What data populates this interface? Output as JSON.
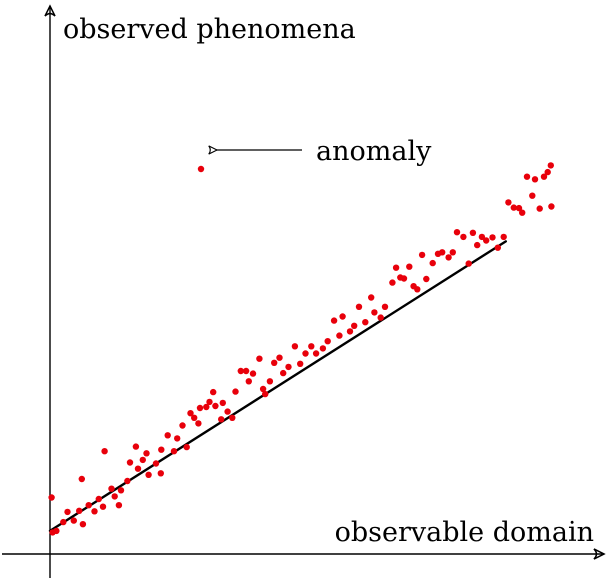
{
  "y_axis_label": "observed phenomena",
  "x_axis_label": "observable domain",
  "annotation_label": "anomaly",
  "colors": {
    "points": "#e8000b",
    "line": "#000000",
    "axes": "#000000",
    "background": "#ffffff"
  },
  "chart_data": {
    "type": "scatter",
    "title": "",
    "xlabel": "observable domain",
    "ylabel": "observed phenomena",
    "xlim": [
      0,
      100
    ],
    "ylim": [
      0,
      100
    ],
    "grid": false,
    "legend": "none",
    "trend_line": {
      "type": "linear",
      "x": [
        0,
        100
      ],
      "y": [
        4.5,
        70
      ]
    },
    "points": [
      {
        "x": 0.5,
        "y": 4.2
      },
      {
        "x": 1.2,
        "y": 4.5
      },
      {
        "x": 0.3,
        "y": 11.0
      },
      {
        "x": 2.5,
        "y": 6.2
      },
      {
        "x": 3.3,
        "y": 8.2
      },
      {
        "x": 4.5,
        "y": 6.5
      },
      {
        "x": 5.5,
        "y": 8.4
      },
      {
        "x": 6.2,
        "y": 5.8
      },
      {
        "x": 6.0,
        "y": 14.6
      },
      {
        "x": 7.3,
        "y": 9.5
      },
      {
        "x": 8.4,
        "y": 8.3
      },
      {
        "x": 9.2,
        "y": 10.7
      },
      {
        "x": 10.0,
        "y": 9.2
      },
      {
        "x": 10.3,
        "y": 20.0
      },
      {
        "x": 11.6,
        "y": 12.7
      },
      {
        "x": 12.2,
        "y": 11.2
      },
      {
        "x": 13.4,
        "y": 12.4
      },
      {
        "x": 13.0,
        "y": 9.5
      },
      {
        "x": 14.6,
        "y": 14.2
      },
      {
        "x": 15.1,
        "y": 17.8
      },
      {
        "x": 16.2,
        "y": 20.9
      },
      {
        "x": 16.6,
        "y": 16.6
      },
      {
        "x": 17.5,
        "y": 18.3
      },
      {
        "x": 18.2,
        "y": 19.6
      },
      {
        "x": 18.6,
        "y": 15.4
      },
      {
        "x": 20.0,
        "y": 17.6
      },
      {
        "x": 21.0,
        "y": 20.3
      },
      {
        "x": 20.9,
        "y": 15.7
      },
      {
        "x": 22.2,
        "y": 23.1
      },
      {
        "x": 23.4,
        "y": 20.0
      },
      {
        "x": 24.0,
        "y": 22.5
      },
      {
        "x": 25.0,
        "y": 25.0
      },
      {
        "x": 25.8,
        "y": 20.8
      },
      {
        "x": 26.5,
        "y": 27.4
      },
      {
        "x": 27.2,
        "y": 26.5
      },
      {
        "x": 28.3,
        "y": 28.4
      },
      {
        "x": 28.0,
        "y": 25.4
      },
      {
        "x": 29.5,
        "y": 28.6
      },
      {
        "x": 30.1,
        "y": 29.6
      },
      {
        "x": 30.8,
        "y": 31.5
      },
      {
        "x": 31.2,
        "y": 28.8
      },
      {
        "x": 32.3,
        "y": 26.2
      },
      {
        "x": 32.6,
        "y": 29.4
      },
      {
        "x": 33.5,
        "y": 27.7
      },
      {
        "x": 34.4,
        "y": 26.5
      },
      {
        "x": 35.0,
        "y": 31.6
      },
      {
        "x": 36.0,
        "y": 35.6
      },
      {
        "x": 37.0,
        "y": 35.6
      },
      {
        "x": 37.5,
        "y": 33.6
      },
      {
        "x": 38.3,
        "y": 35.1
      },
      {
        "x": 39.5,
        "y": 38.0
      },
      {
        "x": 40.2,
        "y": 32.1
      },
      {
        "x": 40.6,
        "y": 31.1
      },
      {
        "x": 41.5,
        "y": 33.6
      },
      {
        "x": 42.3,
        "y": 37.2
      },
      {
        "x": 43.3,
        "y": 38.2
      },
      {
        "x": 44.0,
        "y": 35.2
      },
      {
        "x": 45.0,
        "y": 36.4
      },
      {
        "x": 46.2,
        "y": 40.4
      },
      {
        "x": 47.2,
        "y": 37.0
      },
      {
        "x": 48.2,
        "y": 39.0
      },
      {
        "x": 49.3,
        "y": 40.4
      },
      {
        "x": 50.2,
        "y": 39.0
      },
      {
        "x": 51.5,
        "y": 40.0
      },
      {
        "x": 52.4,
        "y": 41.4
      },
      {
        "x": 53.6,
        "y": 45.4
      },
      {
        "x": 54.6,
        "y": 42.5
      },
      {
        "x": 55.2,
        "y": 46.2
      },
      {
        "x": 56.6,
        "y": 43.3
      },
      {
        "x": 57.4,
        "y": 44.4
      },
      {
        "x": 58.3,
        "y": 48.1
      },
      {
        "x": 59.5,
        "y": 45.1
      },
      {
        "x": 60.6,
        "y": 49.9
      },
      {
        "x": 61.2,
        "y": 47.0
      },
      {
        "x": 62.4,
        "y": 46.0
      },
      {
        "x": 63.2,
        "y": 48.1
      },
      {
        "x": 64.6,
        "y": 52.8
      },
      {
        "x": 65.3,
        "y": 55.7
      },
      {
        "x": 66.1,
        "y": 53.8
      },
      {
        "x": 66.8,
        "y": 53.6
      },
      {
        "x": 67.8,
        "y": 55.9
      },
      {
        "x": 68.6,
        "y": 52.1
      },
      {
        "x": 69.3,
        "y": 51.5
      },
      {
        "x": 70.2,
        "y": 58.2
      },
      {
        "x": 71.0,
        "y": 53.5
      },
      {
        "x": 72.2,
        "y": 56.6
      },
      {
        "x": 73.2,
        "y": 58.4
      },
      {
        "x": 74.0,
        "y": 58.7
      },
      {
        "x": 75.2,
        "y": 57.7
      },
      {
        "x": 76.0,
        "y": 58.7
      },
      {
        "x": 76.8,
        "y": 62.6
      },
      {
        "x": 78.0,
        "y": 61.7
      },
      {
        "x": 79.0,
        "y": 56.5
      },
      {
        "x": 79.8,
        "y": 62.5
      },
      {
        "x": 80.6,
        "y": 60.1
      },
      {
        "x": 81.5,
        "y": 61.7
      },
      {
        "x": 82.3,
        "y": 61.0
      },
      {
        "x": 83.5,
        "y": 61.6
      },
      {
        "x": 84.5,
        "y": 59.6
      },
      {
        "x": 85.6,
        "y": 61.7
      },
      {
        "x": 86.5,
        "y": 68.4
      },
      {
        "x": 87.5,
        "y": 67.4
      },
      {
        "x": 88.5,
        "y": 67.3
      },
      {
        "x": 89.1,
        "y": 66.4
      },
      {
        "x": 90.0,
        "y": 73.4
      },
      {
        "x": 91.0,
        "y": 69.7
      },
      {
        "x": 91.5,
        "y": 72.9
      },
      {
        "x": 92.4,
        "y": 67.2
      },
      {
        "x": 93.2,
        "y": 73.4
      },
      {
        "x": 93.9,
        "y": 74.3
      },
      {
        "x": 94.5,
        "y": 75.6
      },
      {
        "x": 94.6,
        "y": 67.6
      },
      {
        "x": 28.5,
        "y": 74.9,
        "label": "anomaly"
      }
    ]
  }
}
